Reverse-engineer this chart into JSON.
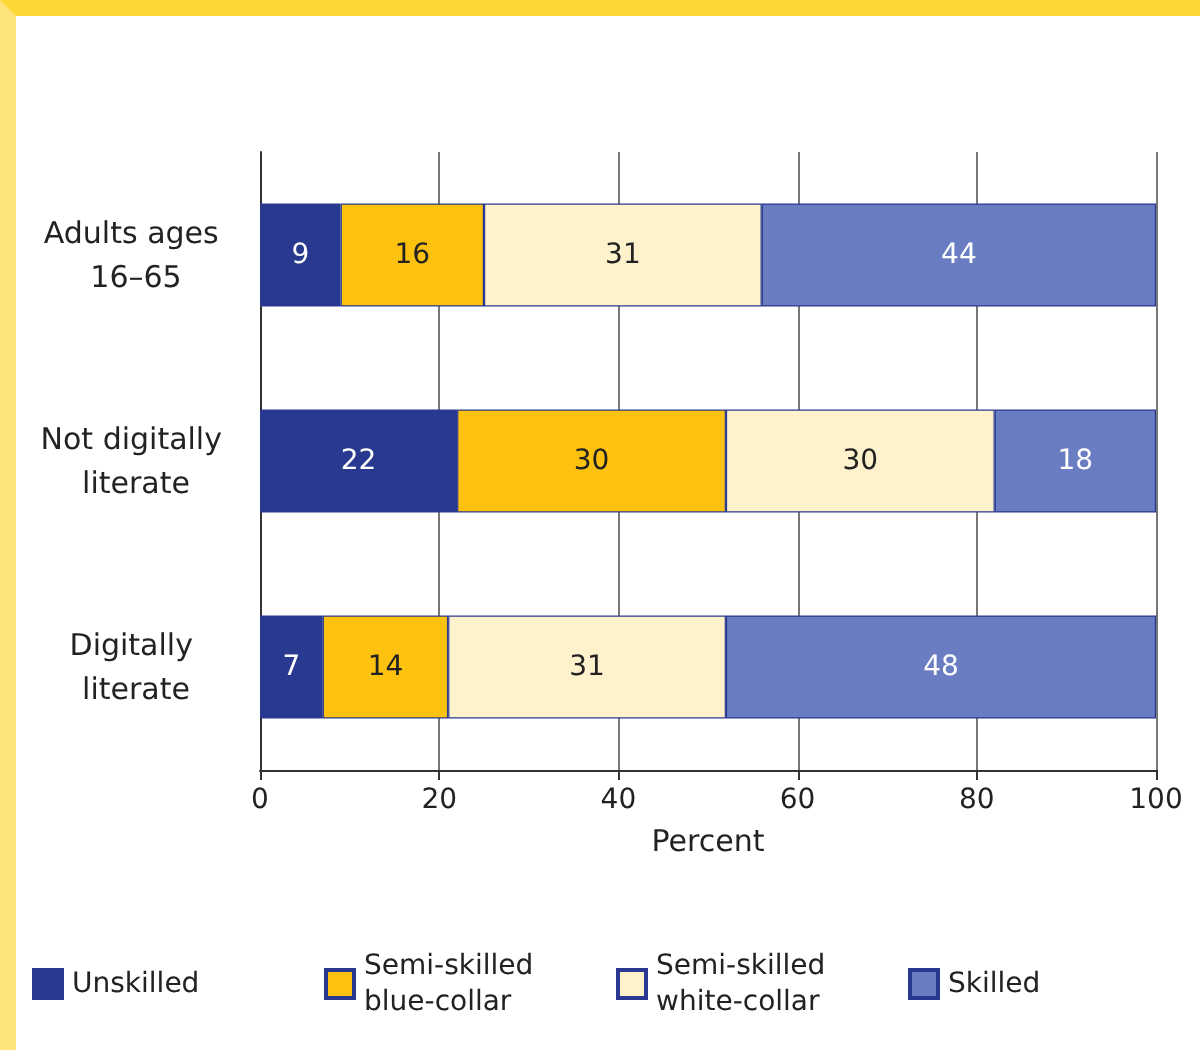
{
  "chart_data": {
    "type": "bar",
    "orientation": "horizontal",
    "stacked": true,
    "xlabel": "Percent",
    "categories": [
      "Adults ages 16–65",
      "Not digitally literate",
      "Digitally literate"
    ],
    "series": [
      {
        "name": "Unskilled",
        "color": "#28398f",
        "values": [
          9,
          22,
          7
        ]
      },
      {
        "name": "Semi-skilled blue-collar",
        "color": "#fdc10f",
        "values": [
          16,
          30,
          14
        ]
      },
      {
        "name": "Semi-skilled white-collar",
        "color": "#fdf2cc",
        "values": [
          31,
          30,
          31
        ]
      },
      {
        "name": "Skilled",
        "color": "#6a7dc2",
        "values": [
          44,
          18,
          48
        ]
      }
    ],
    "xlim": [
      0,
      100
    ],
    "xticks": [
      0,
      20,
      40,
      60,
      80,
      100
    ],
    "grid": "x",
    "data_labels": true,
    "legend": "bottom"
  }
}
